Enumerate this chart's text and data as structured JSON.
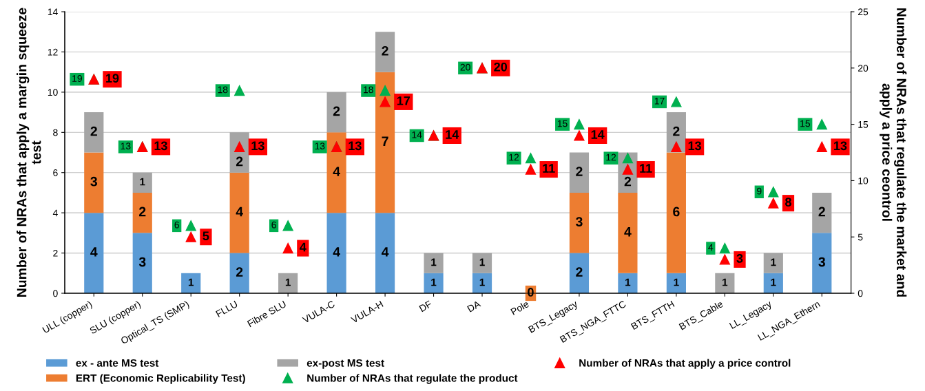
{
  "chart_data": {
    "type": "bar",
    "stacked": true,
    "ylabel": "Number of NRAs that apply a margin squeeze test",
    "y2label": "Number of NRAs that regulate the market and apply a price ceontrol",
    "categories": [
      "ULL (copper)",
      "SLU (copper)",
      "Optical_TS (SMP)",
      "FLLU",
      "Fibre SLU",
      "VULA-C",
      "VULA-H",
      "DF",
      "DA",
      "Pole",
      "BTS_Legacy",
      "BTS_NGA_FTTC",
      "BTS_FTTH",
      "BTS_Cable",
      "LL_Legacy",
      "LL_NGA_Ethern"
    ],
    "ylim": [
      0,
      14
    ],
    "yticks": [
      0,
      2,
      4,
      6,
      8,
      10,
      12,
      14
    ],
    "y2lim": [
      0,
      25
    ],
    "y2ticks": [
      0,
      5,
      10,
      15,
      20,
      25
    ],
    "grid": "y",
    "legend": "bottom",
    "series": [
      {
        "name": "ex - ante MS test",
        "color": "#5b9bd5",
        "values": [
          4,
          3,
          1,
          2,
          0,
          4,
          4,
          1,
          1,
          0,
          2,
          1,
          1,
          0,
          1,
          3
        ],
        "value_labels": [
          "4",
          "3",
          "1",
          "2",
          null,
          "4",
          "4",
          "1",
          "1",
          null,
          "2",
          "1",
          "1",
          null,
          "1",
          "3"
        ]
      },
      {
        "name": "ERT (Economic Replicability Test)",
        "color": "#ed7d31",
        "values": [
          3,
          2,
          0,
          4,
          0,
          4,
          7,
          0,
          0,
          0,
          3,
          4,
          6,
          0,
          0,
          0
        ],
        "value_labels": [
          "3",
          "2",
          null,
          "4",
          null,
          "4",
          "7",
          null,
          null,
          "0",
          "3",
          "4",
          "6",
          null,
          null,
          null
        ]
      },
      {
        "name": "ex-post MS test",
        "color": "#a5a5a5",
        "values": [
          2,
          1,
          0,
          2,
          1,
          2,
          2,
          1,
          1,
          0,
          2,
          2,
          2,
          1,
          1,
          2
        ],
        "value_labels": [
          "2",
          "1",
          null,
          "2",
          "1",
          "2",
          "2",
          "1",
          "1",
          null,
          "2",
          "2",
          "2",
          "1",
          "1",
          "2"
        ]
      },
      {
        "name": "Number of NRAs that regulate the product",
        "type": "scatter",
        "axis": "y2",
        "marker": "triangle",
        "color": "#00b050",
        "values": [
          19,
          13,
          6,
          18,
          6,
          13,
          18,
          14,
          20,
          12,
          15,
          12,
          17,
          4,
          9,
          15
        ],
        "data_labels": true
      },
      {
        "name": "Number of NRAs that apply a price control",
        "type": "scatter",
        "axis": "y2",
        "marker": "triangle",
        "color": "#ff0000",
        "values": [
          19,
          13,
          5,
          13,
          4,
          13,
          17,
          14,
          20,
          11,
          14,
          11,
          13,
          3,
          8,
          13
        ],
        "data_labels": true
      }
    ]
  }
}
